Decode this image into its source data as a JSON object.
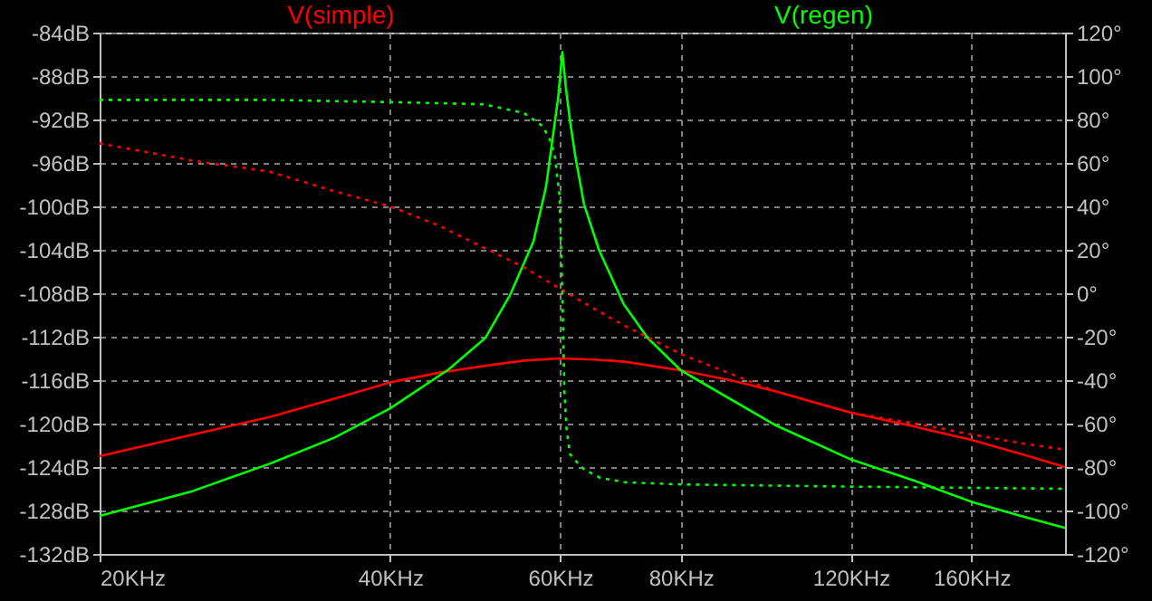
{
  "chart_data": {
    "type": "line",
    "xlim": [
      20,
      200
    ],
    "log": "x",
    "xticks": [
      {
        "value": 20,
        "label": "20KHz"
      },
      {
        "value": 40,
        "label": "40KHz"
      },
      {
        "value": 60,
        "label": "60KHz"
      },
      {
        "value": 80,
        "label": "80KHz"
      },
      {
        "value": 120,
        "label": "120KHz"
      },
      {
        "value": 160,
        "label": "160KHz"
      }
    ],
    "ylim": [
      -132,
      -84
    ],
    "yticks": [
      {
        "value": -132,
        "label": "-132dB"
      },
      {
        "value": -128,
        "label": "-128dB"
      },
      {
        "value": -124,
        "label": "-124dB"
      },
      {
        "value": -120,
        "label": "-120dB"
      },
      {
        "value": -116,
        "label": "-116dB"
      },
      {
        "value": -112,
        "label": "-112dB"
      },
      {
        "value": -108,
        "label": "-108dB"
      },
      {
        "value": -104,
        "label": "-104dB"
      },
      {
        "value": -100,
        "label": "-100dB"
      },
      {
        "value": -96,
        "label": "-96dB"
      },
      {
        "value": -92,
        "label": "-92dB"
      },
      {
        "value": -88,
        "label": "-88dB"
      },
      {
        "value": -84,
        "label": "-84dB"
      }
    ],
    "y2lim": [
      -120,
      120
    ],
    "y2ticks": [
      {
        "value": -120,
        "label": "-120°"
      },
      {
        "value": -100,
        "label": "-100°"
      },
      {
        "value": -80,
        "label": "-80°"
      },
      {
        "value": -60,
        "label": "-60°"
      },
      {
        "value": -40,
        "label": "-40°"
      },
      {
        "value": -20,
        "label": "-20°"
      },
      {
        "value": 0,
        "label": "0°"
      },
      {
        "value": 20,
        "label": "20°"
      },
      {
        "value": 40,
        "label": "40°"
      },
      {
        "value": 60,
        "label": "60°"
      },
      {
        "value": 80,
        "label": "80°"
      },
      {
        "value": 100,
        "label": "100°"
      },
      {
        "value": 120,
        "label": "120°"
      }
    ],
    "grid": true,
    "legend": "top",
    "series": [
      {
        "name": "V(simple)",
        "color": "#ff0000",
        "line_style": "solid",
        "x": [
          20,
          25,
          30,
          35,
          40,
          45,
          50,
          55,
          60,
          65,
          70,
          80,
          90,
          100,
          120,
          140,
          160,
          180,
          200
        ],
        "values": [
          -123.0,
          -121.0,
          -119.4,
          -117.7,
          -116.2,
          -115.3,
          -114.7,
          -114.2,
          -114.0,
          -114.1,
          -114.3,
          -115.1,
          -116.0,
          -117.0,
          -119.0,
          -120.3,
          -121.5,
          -122.8,
          -124.0
        ]
      },
      {
        "color": "#ff0000",
        "axis": "y2",
        "line_style": "dotted",
        "x": [
          20,
          25,
          30,
          35,
          40,
          45,
          50,
          55,
          60,
          65,
          70,
          80,
          90,
          100,
          120,
          140,
          160,
          180,
          200
        ],
        "values": [
          69,
          61,
          56,
          47,
          40,
          31,
          21,
          12,
          2,
          -7,
          -15,
          -28,
          -37,
          -45,
          -55,
          -60,
          -65,
          -69,
          -72
        ]
      },
      {
        "name": "V(regen)",
        "color": "#00ff00",
        "line_style": "solid",
        "x": [
          20,
          25,
          30,
          35,
          40,
          46,
          50.2,
          53.2,
          56.3,
          58,
          58.8,
          59.7,
          60.3,
          60.8,
          61.4,
          62.2,
          63.5,
          65.8,
          69.8,
          73.9,
          80,
          100,
          120,
          140,
          160,
          180,
          200
        ],
        "values": [
          -128.5,
          -126.2,
          -123.7,
          -121.3,
          -118.6,
          -115.0,
          -112.1,
          -108.2,
          -103.2,
          -98.2,
          -94.3,
          -90,
          -85.8,
          -89,
          -92.1,
          -95.4,
          -99.8,
          -104,
          -109,
          -112.1,
          -115.1,
          -120.1,
          -123.3,
          -125.3,
          -127.2,
          -128.5,
          -129.6
        ]
      },
      {
        "color": "#00ff00",
        "axis": "y2",
        "line_style": "dotted",
        "x": [
          20,
          30,
          40,
          50,
          55,
          57.5,
          58.5,
          59.2,
          59.9,
          60.3,
          60.6,
          60.9,
          61.4,
          62.5,
          63.5,
          66,
          70,
          80,
          120,
          200
        ],
        "values": [
          89,
          89,
          88,
          87,
          83,
          77,
          71,
          64,
          45,
          0,
          -45,
          -62,
          -74,
          -78,
          -81,
          -85,
          -87,
          -88,
          -89,
          -90
        ]
      }
    ]
  }
}
